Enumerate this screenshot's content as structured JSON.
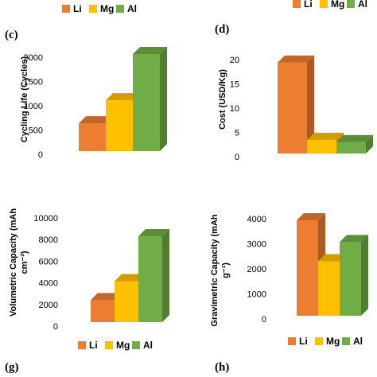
{
  "colors": {
    "Li": "#ED7D31",
    "Mg": "#FFC000",
    "Al": "#70AD47"
  },
  "chart_data": [
    {
      "type": "bar",
      "panel": "(c)",
      "ylabel": "Cycling Life (Cycles)",
      "categories": [
        "Li",
        "Mg",
        "Al"
      ],
      "values": [
        600,
        1100,
        2100
      ],
      "ylim": [
        0,
        2100
      ],
      "yticks": [
        "0",
        "500",
        "1000",
        "1500",
        "2000"
      ],
      "legend": [
        "Li",
        "Mg",
        "Al"
      ],
      "legend_position": "top"
    },
    {
      "type": "bar",
      "panel": "(d)",
      "ylabel": "Cost (USD/Kg)",
      "categories": [
        "Li",
        "Mg",
        "Al"
      ],
      "values": [
        20,
        3,
        2.5
      ],
      "ylim": [
        0,
        21
      ],
      "yticks": [
        "0",
        "5",
        "10",
        "15",
        "20"
      ],
      "legend": [
        "Li",
        "Mg",
        "Al"
      ],
      "legend_position": "top"
    },
    {
      "type": "bar",
      "panel": "(g)",
      "ylabel": "Volumetric Capacity (mAh cm⁻³)",
      "ylabel_lines": [
        "Volumetric Capacity (mAh",
        "cm⁻³)"
      ],
      "categories": [
        "Li",
        "Mg",
        "Al"
      ],
      "values": [
        2062,
        3833,
        8046
      ],
      "ylim": [
        0,
        8046
      ],
      "yticks": [
        "0",
        "2000",
        "4000",
        "6000",
        "8000",
        "10000"
      ],
      "legend": [
        "Li",
        "Mg",
        "Al"
      ],
      "legend_position": "top"
    },
    {
      "type": "bar",
      "panel": "(h)",
      "ylabel": "Gravimetric Capacity (mAh g⁻¹)",
      "ylabel_lines": [
        "Gravimetric Capacity (mAh",
        "g⁻¹)"
      ],
      "categories": [
        "Li",
        "Mg",
        "Al"
      ],
      "values": [
        3861,
        2205,
        2980
      ],
      "ylim": [
        0,
        3861
      ],
      "yticks": [
        "0",
        "1000",
        "2000",
        "3000",
        "4000"
      ],
      "legend": [
        "Li",
        "Mg",
        "Al"
      ],
      "legend_position": "bottom"
    }
  ]
}
